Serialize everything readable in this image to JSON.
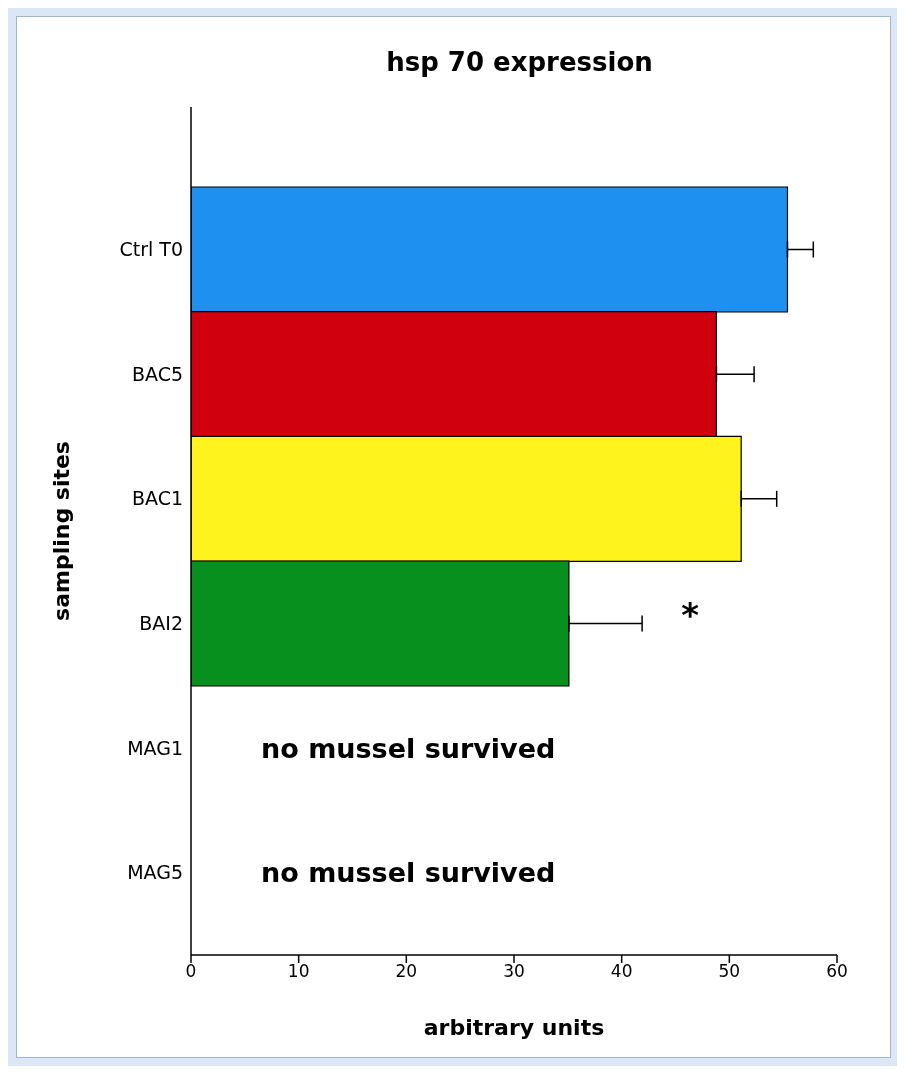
{
  "chart_data": {
    "type": "bar",
    "orientation": "horizontal",
    "title": "hsp 70 expression",
    "xlabel": "arbitrary units",
    "ylabel": "sampling sites",
    "categories": [
      "Ctrl T0",
      "BAC5",
      "BAC1",
      "BAI2",
      "MAG1",
      "MAG5"
    ],
    "values": [
      55.4,
      48.8,
      51.1,
      35.1,
      null,
      null
    ],
    "colors": [
      "#1e90f0",
      "#d0000e",
      "#fff31e",
      "#08901e",
      "#808080",
      "#808080"
    ],
    "errors": [
      [
        55.4,
        57.8
      ],
      [
        48.8,
        52.3
      ],
      [
        51.1,
        54.4
      ],
      [
        35.1,
        41.9
      ],
      null,
      null
    ],
    "xlim": [
      0,
      60
    ],
    "xticks": [
      0,
      10,
      20,
      30,
      40,
      50,
      60
    ],
    "annotations": [
      "no mussel survived",
      "no mussel survived",
      "*"
    ],
    "grid": false,
    "legend": false
  }
}
